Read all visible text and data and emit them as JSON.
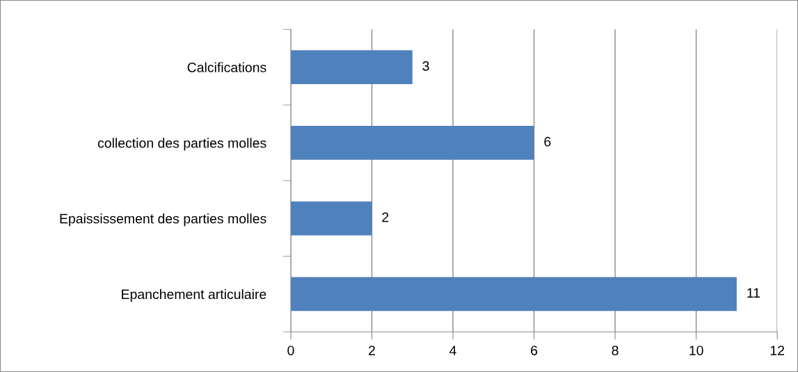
{
  "chart_data": {
    "type": "bar",
    "orientation": "horizontal",
    "categories": [
      "Calcifications",
      "collection des parties molles",
      "Epaississement des parties molles",
      "Epanchement articulaire"
    ],
    "values": [
      3,
      6,
      2,
      11
    ],
    "color": "#4f81bd",
    "xlim": [
      0,
      12
    ],
    "xticks": [
      0,
      2,
      4,
      6,
      8,
      10,
      12
    ],
    "grid": "x",
    "data_labels": true
  }
}
